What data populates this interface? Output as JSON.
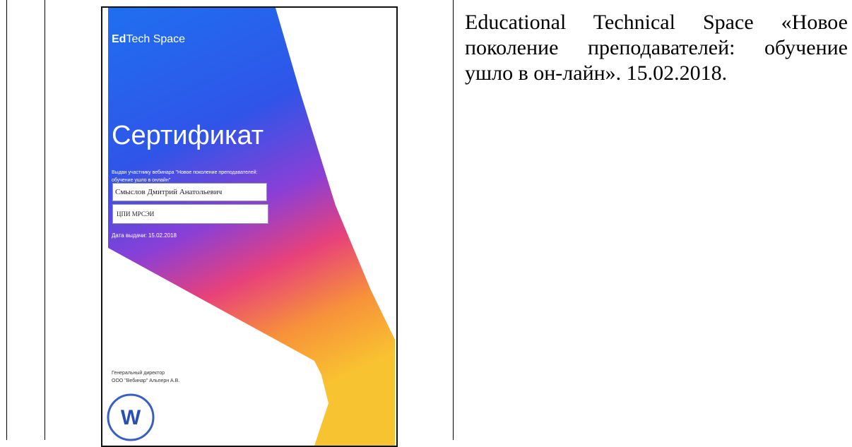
{
  "certificate": {
    "brand_bold": "Ed",
    "brand_rest": "Tech Space",
    "title": "Сертификат",
    "issued_to": "Выдан участнику вебинара \"Новое поколение преподавателей: обучение ушло в онлайн\"",
    "name": "Смыслов Дмитрий Анатольевич",
    "organization": "ЦПИ МРСЭИ",
    "date": "Дата выдачи: 15.02.2018",
    "signer_title": "Генеральный директор",
    "signer": "ООО \"Вебинар\" Альперн А.В."
  },
  "caption": "Educational Technical Space «Новое поколение преподавателей: обучение ушло в он-лайн». 15.02.2018."
}
